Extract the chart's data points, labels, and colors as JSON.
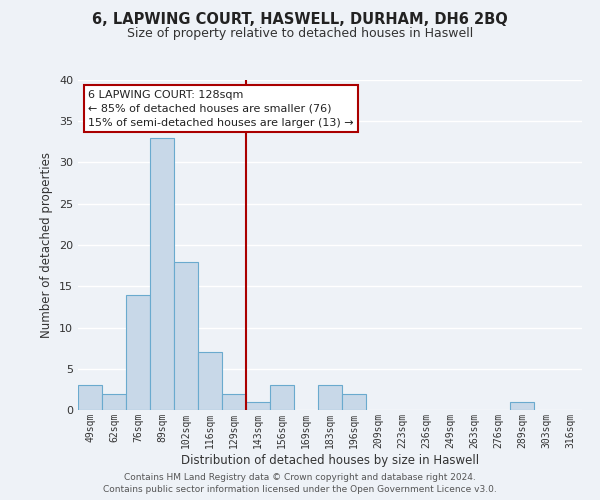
{
  "title": "6, LAPWING COURT, HASWELL, DURHAM, DH6 2BQ",
  "subtitle": "Size of property relative to detached houses in Haswell",
  "xlabel": "Distribution of detached houses by size in Haswell",
  "ylabel": "Number of detached properties",
  "bar_color": "#c8d8e8",
  "bar_edge_color": "#6aaace",
  "background_color": "#eef2f7",
  "grid_color": "#ffffff",
  "bin_labels": [
    "49sqm",
    "62sqm",
    "76sqm",
    "89sqm",
    "102sqm",
    "116sqm",
    "129sqm",
    "143sqm",
    "156sqm",
    "169sqm",
    "183sqm",
    "196sqm",
    "209sqm",
    "223sqm",
    "236sqm",
    "249sqm",
    "263sqm",
    "276sqm",
    "289sqm",
    "303sqm",
    "316sqm"
  ],
  "bar_values": [
    3,
    2,
    14,
    33,
    18,
    7,
    2,
    1,
    3,
    0,
    3,
    2,
    0,
    0,
    0,
    0,
    0,
    0,
    1,
    0,
    0
  ],
  "ylim": [
    0,
    40
  ],
  "yticks": [
    0,
    5,
    10,
    15,
    20,
    25,
    30,
    35,
    40
  ],
  "vline_x": 6.5,
  "vline_color": "#aa0000",
  "annotation_title": "6 LAPWING COURT: 128sqm",
  "annotation_line1": "← 85% of detached houses are smaller (76)",
  "annotation_line2": "15% of semi-detached houses are larger (13) →",
  "footer1": "Contains HM Land Registry data © Crown copyright and database right 2024.",
  "footer2": "Contains public sector information licensed under the Open Government Licence v3.0."
}
